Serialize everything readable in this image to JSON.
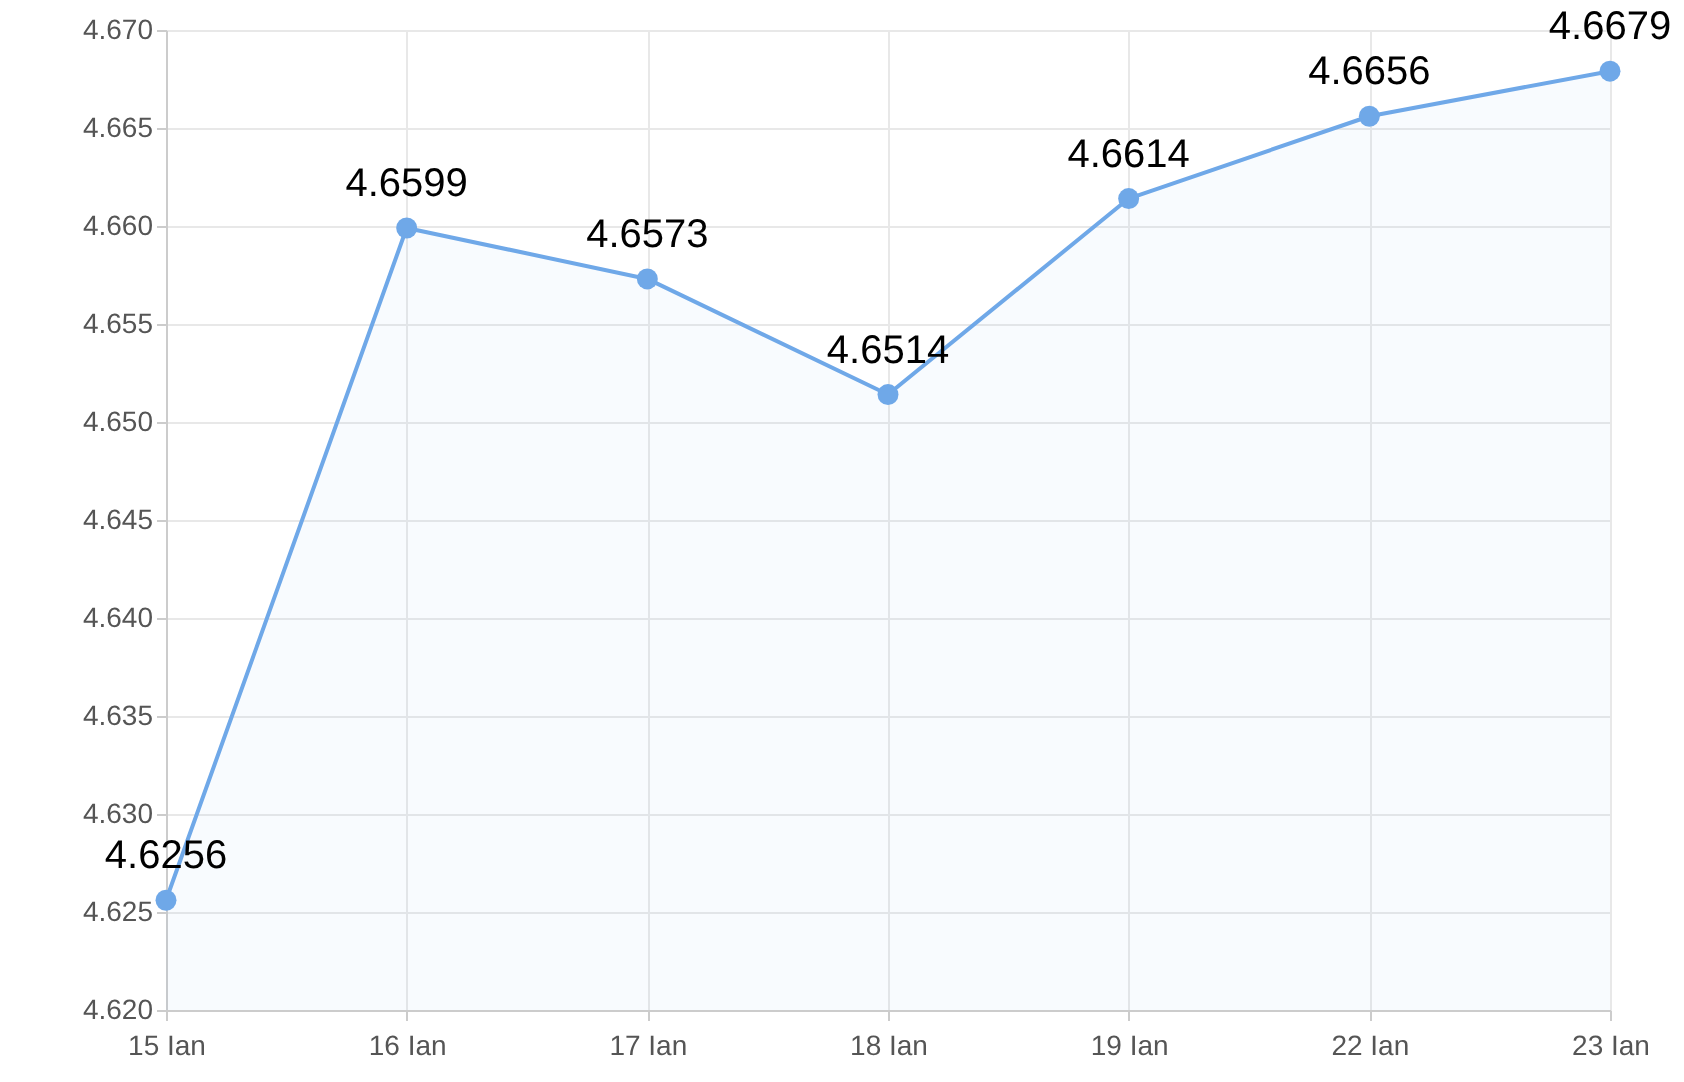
{
  "chart_data": {
    "type": "area",
    "categories": [
      "15 Ian",
      "16 Ian",
      "17 Ian",
      "18 Ian",
      "19 Ian",
      "22 Ian",
      "23 Ian"
    ],
    "series": [
      {
        "color": "#6fa8e8",
        "values": [
          4.6256,
          4.6599,
          4.6573,
          4.6514,
          4.6614,
          4.6656,
          4.6679
        ]
      }
    ],
    "ylim": [
      4.62,
      4.67
    ],
    "yticks": [
      {
        "value": 4.62,
        "label": "4.620"
      },
      {
        "value": 4.625,
        "label": "4.625"
      },
      {
        "value": 4.63,
        "label": "4.630"
      },
      {
        "value": 4.635,
        "label": "4.635"
      },
      {
        "value": 4.64,
        "label": "4.640"
      },
      {
        "value": 4.645,
        "label": "4.645"
      },
      {
        "value": 4.65,
        "label": "4.650"
      },
      {
        "value": 4.655,
        "label": "4.655"
      },
      {
        "value": 4.66,
        "label": "4.660"
      },
      {
        "value": 4.665,
        "label": "4.665"
      },
      {
        "value": 4.67,
        "label": "4.670"
      }
    ],
    "grid": true,
    "marker": "circle",
    "line_style": "solid",
    "data_labels": true
  }
}
